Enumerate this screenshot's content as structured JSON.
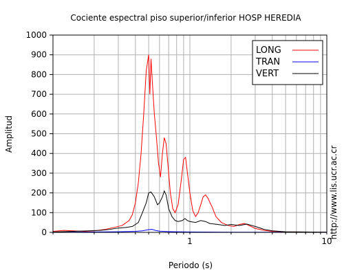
{
  "chart_data": {
    "type": "line",
    "title": "Cociente espectral piso superior/inferior  HOSP HEREDIA",
    "xlabel": "Periodo (s)",
    "ylabel": "Amplitud",
    "xscale": "log",
    "xlim": [
      0.1,
      10
    ],
    "ylim": [
      0,
      1000
    ],
    "y_ticks": [
      0,
      100,
      200,
      300,
      400,
      500,
      600,
      700,
      800,
      900,
      1000
    ],
    "x_tick_labels": [
      {
        "value": 1,
        "label": "1"
      },
      {
        "value": 10,
        "label": "10"
      }
    ],
    "grid": true,
    "legend_position": "top-right",
    "credit_text": "http://www.lis.ucr.ac.cr",
    "series": [
      {
        "name": "LONG",
        "color": "#ff0000",
        "points": [
          [
            0.1,
            5
          ],
          [
            0.12,
            10
          ],
          [
            0.14,
            8
          ],
          [
            0.17,
            5
          ],
          [
            0.2,
            8
          ],
          [
            0.24,
            15
          ],
          [
            0.28,
            25
          ],
          [
            0.32,
            35
          ],
          [
            0.36,
            60
          ],
          [
            0.38,
            90
          ],
          [
            0.4,
            150
          ],
          [
            0.42,
            250
          ],
          [
            0.44,
            400
          ],
          [
            0.46,
            600
          ],
          [
            0.48,
            820
          ],
          [
            0.5,
            900
          ],
          [
            0.51,
            700
          ],
          [
            0.52,
            880
          ],
          [
            0.53,
            780
          ],
          [
            0.55,
            600
          ],
          [
            0.57,
            480
          ],
          [
            0.59,
            350
          ],
          [
            0.61,
            280
          ],
          [
            0.63,
            400
          ],
          [
            0.65,
            480
          ],
          [
            0.67,
            450
          ],
          [
            0.69,
            350
          ],
          [
            0.72,
            200
          ],
          [
            0.75,
            120
          ],
          [
            0.78,
            100
          ],
          [
            0.82,
            140
          ],
          [
            0.86,
            250
          ],
          [
            0.9,
            370
          ],
          [
            0.93,
            380
          ],
          [
            0.96,
            300
          ],
          [
            1.0,
            200
          ],
          [
            1.05,
            110
          ],
          [
            1.1,
            80
          ],
          [
            1.15,
            100
          ],
          [
            1.2,
            140
          ],
          [
            1.25,
            180
          ],
          [
            1.3,
            190
          ],
          [
            1.35,
            175
          ],
          [
            1.45,
            130
          ],
          [
            1.55,
            80
          ],
          [
            1.7,
            50
          ],
          [
            1.9,
            35
          ],
          [
            2.1,
            30
          ],
          [
            2.3,
            40
          ],
          [
            2.5,
            45
          ],
          [
            2.7,
            35
          ],
          [
            3.0,
            20
          ],
          [
            3.5,
            10
          ],
          [
            4.0,
            5
          ],
          [
            5.0,
            2
          ],
          [
            6.0,
            2
          ],
          [
            8.0,
            1
          ],
          [
            10.0,
            1
          ]
        ]
      },
      {
        "name": "TRAN",
        "color": "#0000ff",
        "points": [
          [
            0.1,
            1
          ],
          [
            0.2,
            2
          ],
          [
            0.3,
            3
          ],
          [
            0.4,
            5
          ],
          [
            0.45,
            8
          ],
          [
            0.5,
            14
          ],
          [
            0.53,
            15
          ],
          [
            0.56,
            10
          ],
          [
            0.6,
            6
          ],
          [
            0.7,
            4
          ],
          [
            0.8,
            3
          ],
          [
            1.0,
            2
          ],
          [
            2.0,
            1
          ],
          [
            5.0,
            1
          ],
          [
            10.0,
            1
          ]
        ]
      },
      {
        "name": "VERT",
        "color": "#000000",
        "points": [
          [
            0.1,
            2
          ],
          [
            0.14,
            5
          ],
          [
            0.18,
            8
          ],
          [
            0.22,
            10
          ],
          [
            0.26,
            15
          ],
          [
            0.3,
            22
          ],
          [
            0.34,
            25
          ],
          [
            0.38,
            30
          ],
          [
            0.42,
            50
          ],
          [
            0.45,
            100
          ],
          [
            0.48,
            150
          ],
          [
            0.5,
            200
          ],
          [
            0.52,
            205
          ],
          [
            0.55,
            180
          ],
          [
            0.58,
            140
          ],
          [
            0.6,
            150
          ],
          [
            0.63,
            180
          ],
          [
            0.65,
            210
          ],
          [
            0.67,
            190
          ],
          [
            0.7,
            120
          ],
          [
            0.74,
            80
          ],
          [
            0.78,
            60
          ],
          [
            0.82,
            55
          ],
          [
            0.88,
            60
          ],
          [
            0.92,
            70
          ],
          [
            0.96,
            60
          ],
          [
            1.0,
            55
          ],
          [
            1.1,
            50
          ],
          [
            1.2,
            60
          ],
          [
            1.3,
            55
          ],
          [
            1.4,
            45
          ],
          [
            1.6,
            40
          ],
          [
            1.8,
            35
          ],
          [
            2.0,
            40
          ],
          [
            2.3,
            35
          ],
          [
            2.6,
            42
          ],
          [
            3.0,
            30
          ],
          [
            3.5,
            15
          ],
          [
            4.0,
            8
          ],
          [
            5.0,
            3
          ],
          [
            7.0,
            2
          ],
          [
            10.0,
            1
          ]
        ]
      }
    ]
  }
}
